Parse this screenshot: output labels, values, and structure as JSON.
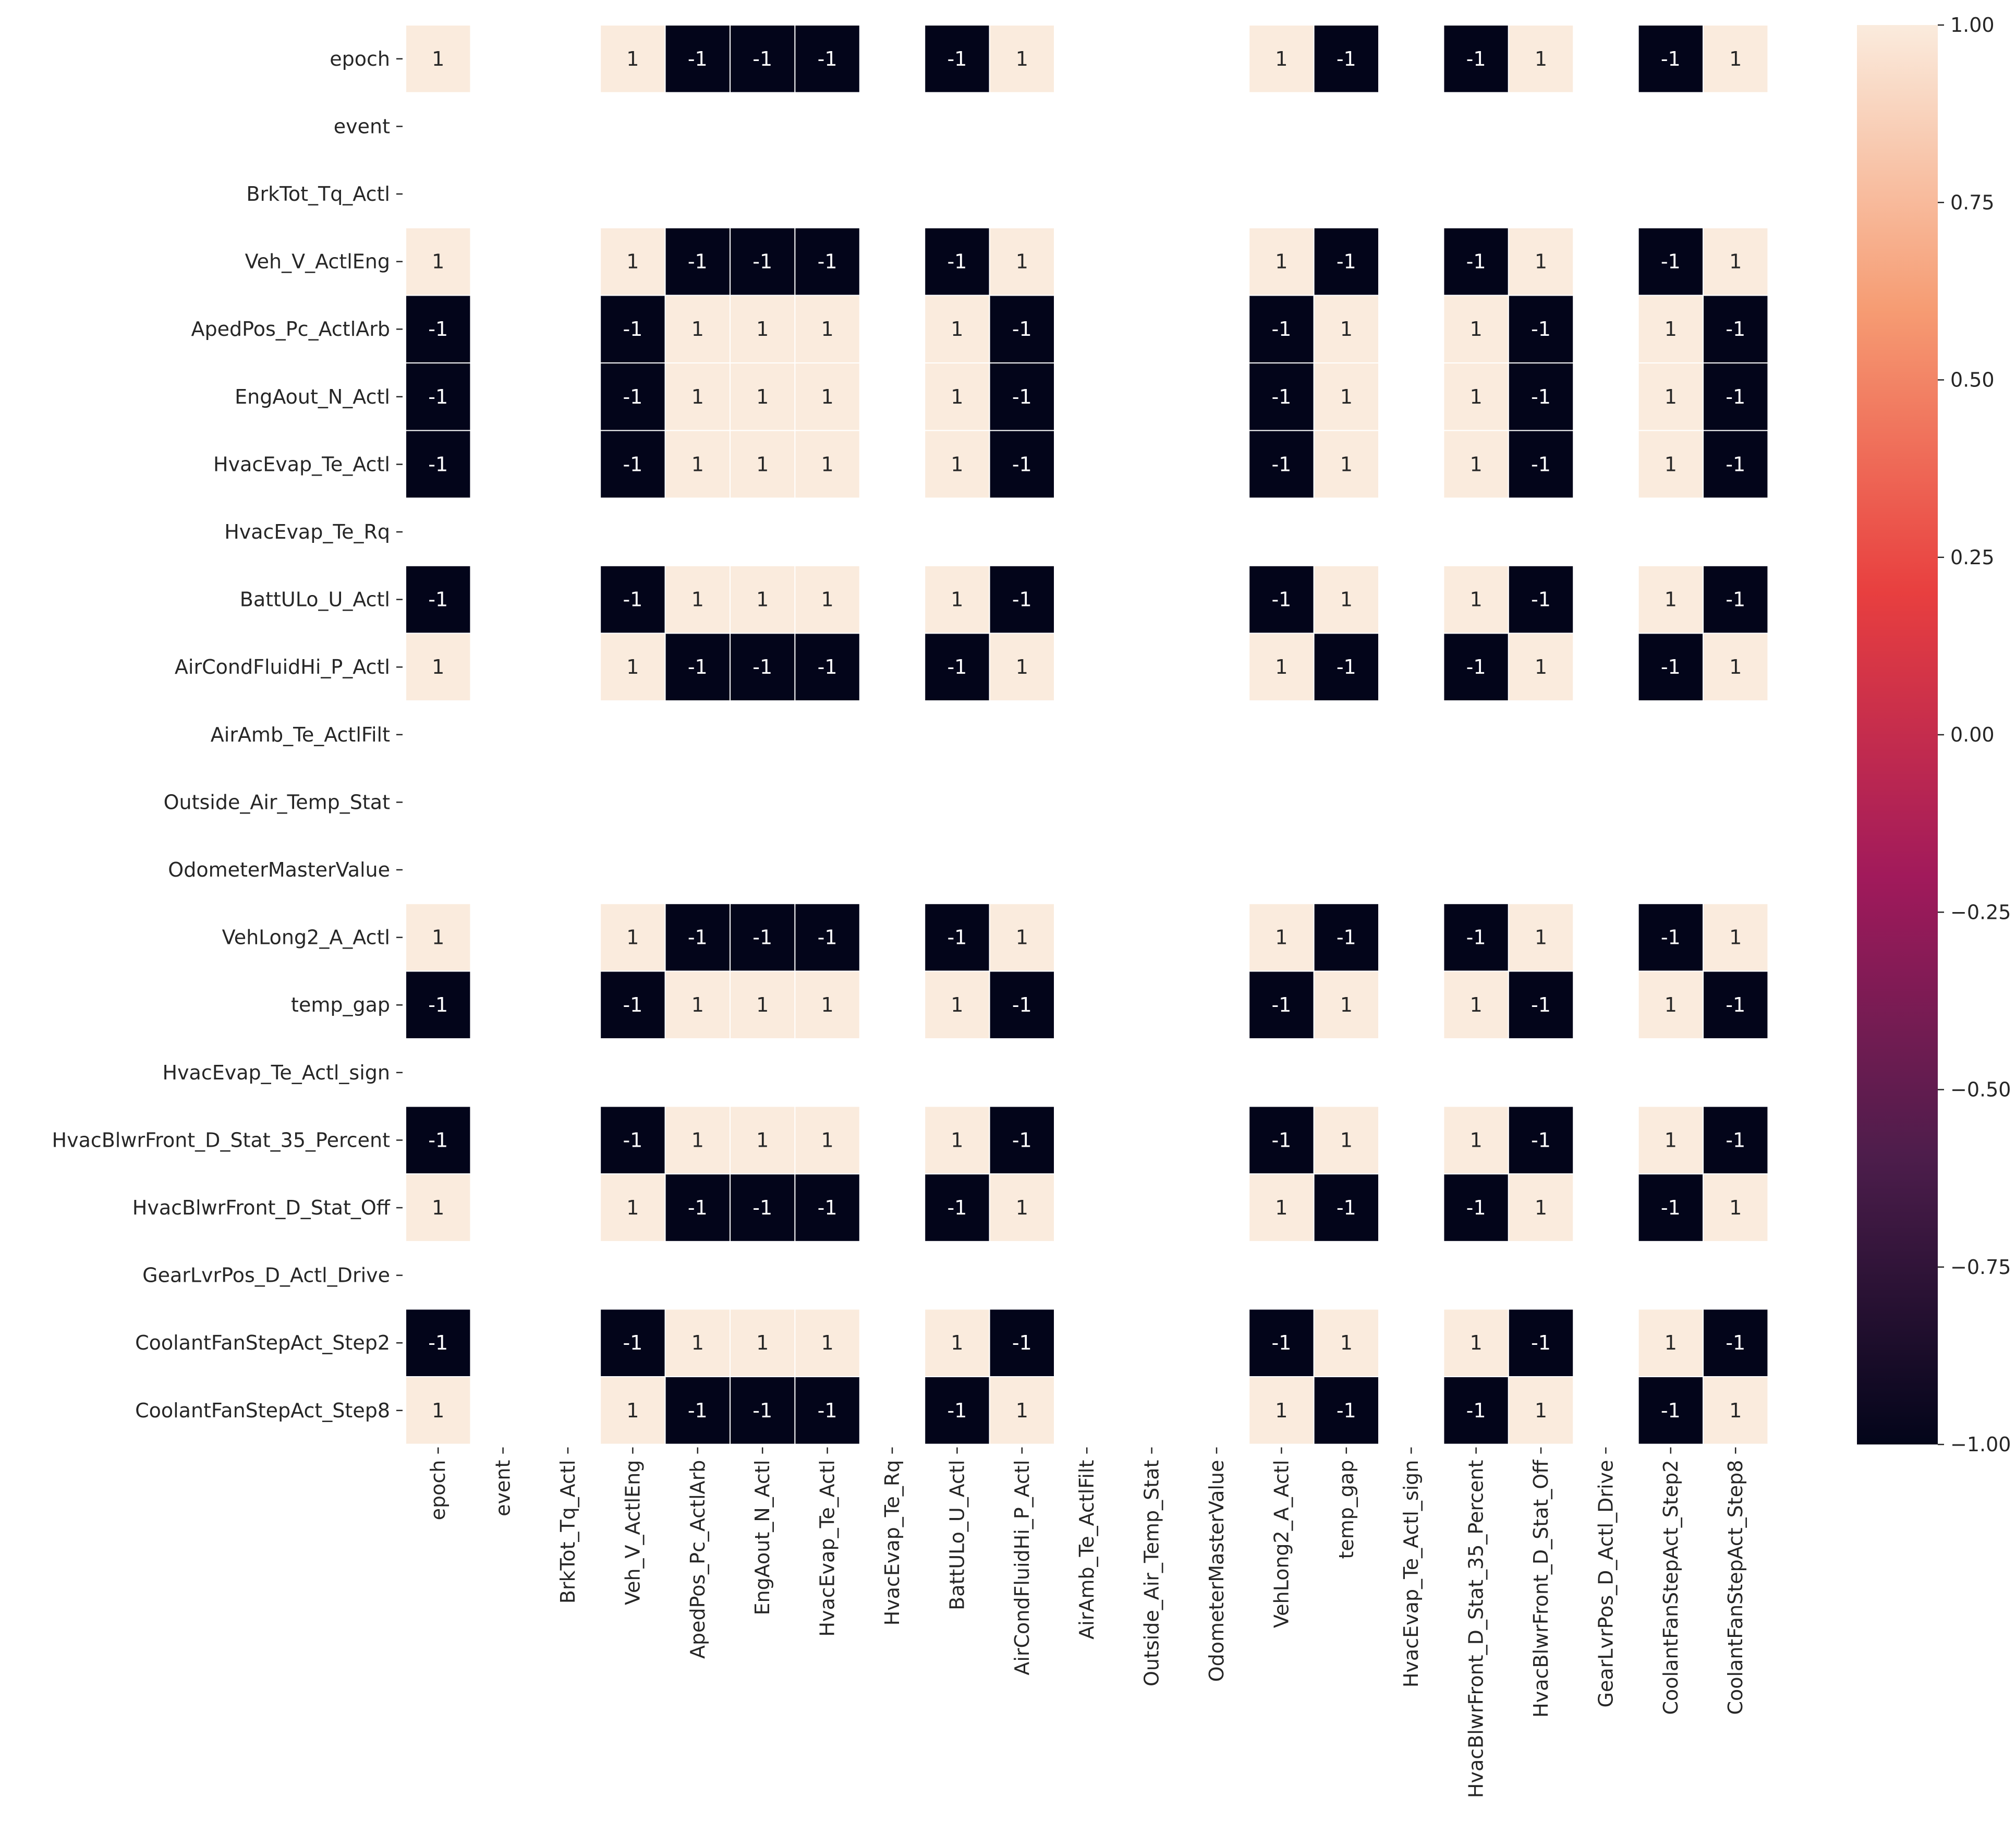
{
  "chart_data": {
    "type": "heatmap",
    "title": "",
    "xlabel": "",
    "ylabel": "",
    "variables": [
      "epoch",
      "event",
      "BrkTot_Tq_Actl",
      "Veh_V_ActlEng",
      "ApedPos_Pc_ActlArb",
      "EngAout_N_Actl",
      "HvacEvap_Te_Actl",
      "HvacEvap_Te_Rq",
      "BattULo_U_Actl",
      "AirCondFluidHi_P_Actl",
      "AirAmb_Te_ActlFilt",
      "Outside_Air_Temp_Stat",
      "OdometerMasterValue",
      "VehLong2_A_Actl",
      "temp_gap",
      "HvacEvap_Te_Actl_sign",
      "HvacBlwrFront_D_Stat_35_Percent",
      "HvacBlwrFront_D_Stat_Off",
      "GearLvrPos_D_Actl_Drive",
      "CoolantFanStepAct_Step2",
      "CoolantFanStepAct_Step8"
    ],
    "signs": [
      1,
      null,
      null,
      1,
      -1,
      -1,
      -1,
      null,
      -1,
      1,
      null,
      null,
      null,
      1,
      -1,
      null,
      -1,
      1,
      null,
      -1,
      1
    ],
    "note_matrix": "correlation value for row i, column j = signs[i] * signs[j]; null marks an empty (NaN) row/column",
    "colorbar": {
      "min": -1.0,
      "max": 1.0,
      "ticks": [
        "1.00",
        "0.75",
        "0.50",
        "0.25",
        "0.00",
        "−0.25",
        "−0.50",
        "−0.75",
        "−1.00"
      ],
      "tick_values": [
        1.0,
        0.75,
        0.5,
        0.25,
        0.0,
        -0.25,
        -0.5,
        -0.75,
        -1.0
      ]
    },
    "colormap": [
      "#03051a",
      "#4c1d4b",
      "#a11a5b",
      "#e83f3f",
      "#f69c73",
      "#faebdd"
    ],
    "annotations": true,
    "cell_border_color": "#ffffff",
    "legend": "colorbar-right"
  }
}
